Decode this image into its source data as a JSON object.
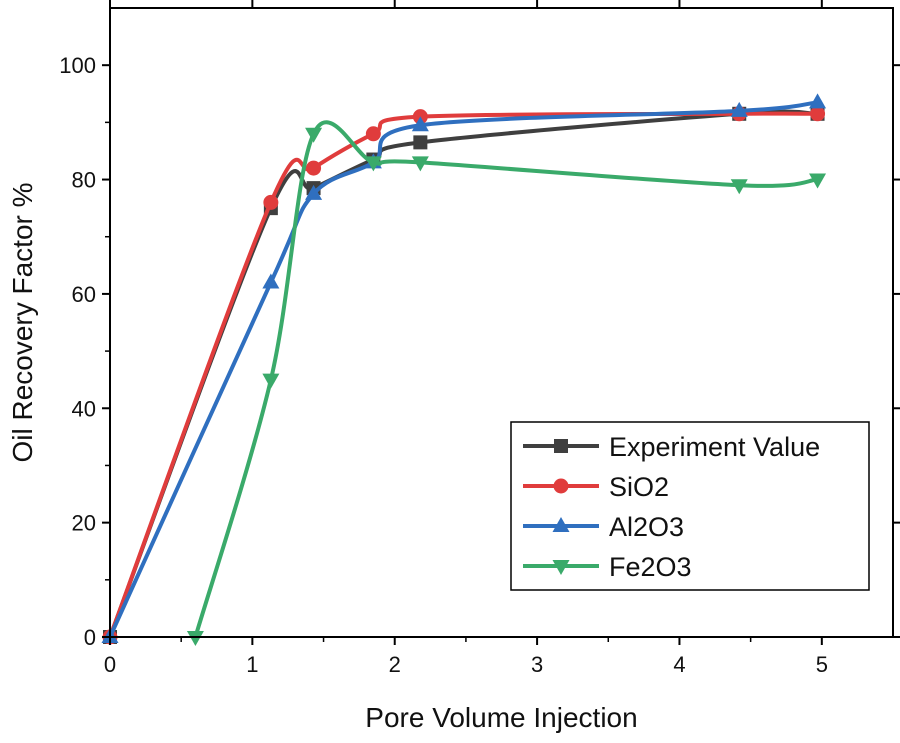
{
  "chart_data": {
    "type": "line",
    "title": "",
    "xlabel": "Pore Volume Injection",
    "ylabel": "Oil Recovery Factor %",
    "xlim": [
      0,
      5.5
    ],
    "ylim": [
      0,
      110
    ],
    "xticks": [
      0,
      1,
      2,
      3,
      4,
      5
    ],
    "yticks": [
      0,
      20,
      40,
      60,
      80,
      100
    ],
    "grid": false,
    "legend_position": "bottom-right",
    "series": [
      {
        "name": "Experiment Value",
        "color": "#3f3f3f",
        "marker": "square",
        "x": [
          0,
          1.13,
          1.43,
          1.85,
          2.18,
          4.42,
          4.97
        ],
        "y": [
          0,
          75,
          78.5,
          83.5,
          86.5,
          91.5,
          91.5
        ]
      },
      {
        "name": "SiO2",
        "color": "#e03c3c",
        "marker": "circle",
        "x": [
          0,
          1.13,
          1.43,
          1.85,
          2.18,
          4.42,
          4.97
        ],
        "y": [
          0,
          76,
          82,
          88,
          91,
          91.5,
          91.5
        ]
      },
      {
        "name": "Al2O3",
        "color": "#2f6fbf",
        "marker": "triangle-up",
        "x": [
          0,
          1.13,
          1.43,
          1.85,
          2.18,
          4.42,
          4.97
        ],
        "y": [
          0,
          62,
          77.5,
          83,
          89.5,
          92,
          93.5
        ]
      },
      {
        "name": "Fe2O3",
        "color": "#3aaa6a",
        "marker": "triangle-down",
        "x": [
          0.6,
          1.13,
          1.43,
          1.85,
          2.18,
          4.42,
          4.97
        ],
        "y": [
          0,
          45,
          88,
          83,
          83,
          79,
          80
        ]
      }
    ]
  }
}
